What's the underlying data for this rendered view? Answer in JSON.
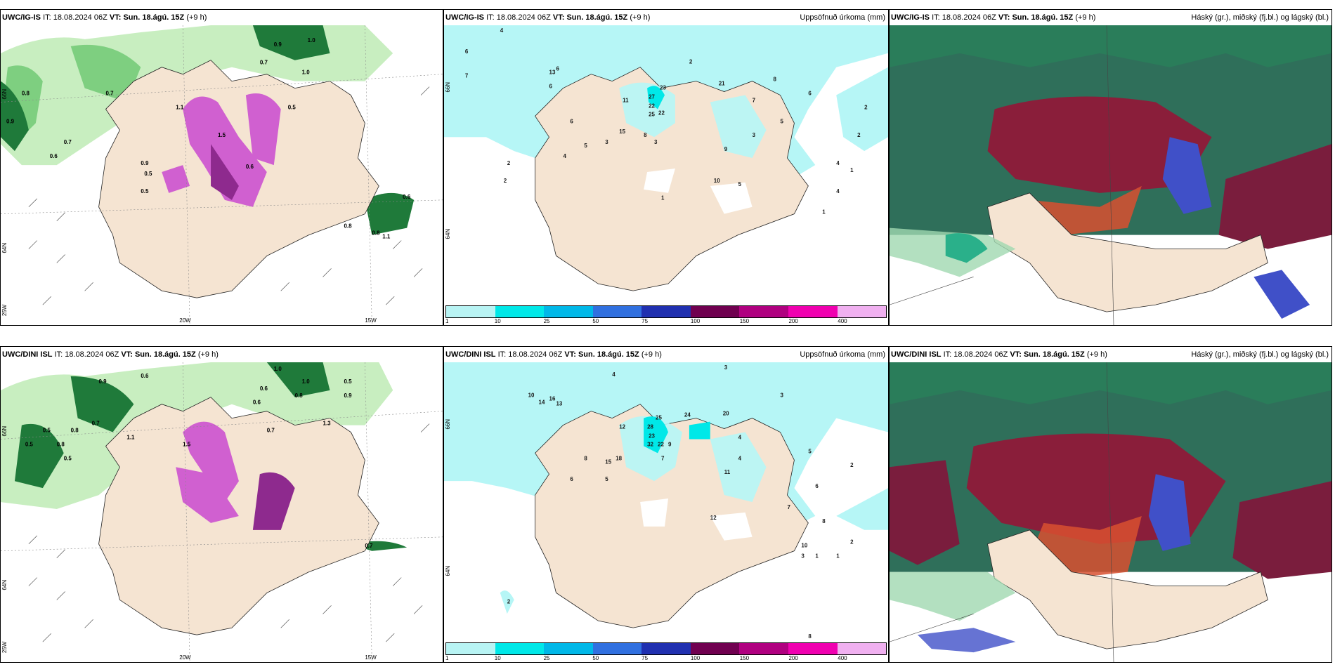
{
  "panels": [
    {
      "model": "UWC/IG-IS",
      "it_label": "IT:",
      "it_value": "18.08.2024 06Z",
      "vt_label": "VT:",
      "vt_value": "Sun. 18.ágú. 15Z",
      "lead": "(+9 h)",
      "title": "",
      "axis": {
        "lat1": "66N",
        "lat2": "64N",
        "lat3": "25W",
        "lon1": "20W",
        "lon2": "15W"
      },
      "labels": [
        "0.9",
        "1.0",
        "0.7",
        "0.8",
        "0.6",
        "0.7",
        "0.5",
        "1.5",
        "0.6",
        "1.1",
        "0.9",
        "0.5",
        "1.0",
        "0.8",
        "0.6",
        "0.7",
        "0.9",
        "0.5",
        "0.8",
        "1.1"
      ]
    },
    {
      "model": "UWC/IG-IS",
      "it_label": "IT:",
      "it_value": "18.08.2024 06Z",
      "vt_label": "VT:",
      "vt_value": "Sun. 18.ágú. 15Z",
      "lead": "(+9 h)",
      "title": "Uppsöfnuð úrkoma (mm)",
      "axis": {
        "lat1": "66N",
        "lat2": "64N"
      },
      "labels": [
        "4",
        "6",
        "2",
        "6",
        "7",
        "3",
        "6",
        "13",
        "27",
        "22",
        "23",
        "25",
        "22",
        "21",
        "11",
        "15",
        "8",
        "6",
        "5",
        "4",
        "3",
        "2",
        "1",
        "10",
        "5",
        "9",
        "7",
        "2",
        "4",
        "1",
        "6",
        "8",
        "2",
        "3",
        "1",
        "4",
        "5",
        "2"
      ]
    },
    {
      "model": "UWC/IG-IS",
      "it_label": "IT:",
      "it_value": "18.08.2024 06Z",
      "vt_label": "VT:",
      "vt_value": "Sun. 18.ágú. 15Z",
      "lead": "(+9 h)",
      "title": "Háský (gr.), miðský (fj.bl.) og lágský (bl.)",
      "axis": {},
      "labels": []
    },
    {
      "model": "UWC/DINI ISL",
      "it_label": "IT:",
      "it_value": "18.08.2024 06Z",
      "vt_label": "VT:",
      "vt_value": "Sun. 18.ágú. 15Z",
      "lead": "(+9 h)",
      "title": "",
      "axis": {
        "lat1": "66N",
        "lat2": "64N",
        "lat3": "25W",
        "lon1": "20W",
        "lon2": "15W"
      },
      "labels": [
        "0.6",
        "1.0",
        "0.5",
        "0.9",
        "0.5",
        "1.5",
        "0.7",
        "0.8",
        "1.3",
        "0.5",
        "0.6",
        "1.1",
        "0.8",
        "0.7",
        "0.9",
        "1.0",
        "0.5",
        "0.6",
        "0.7",
        "0.8"
      ]
    },
    {
      "model": "UWC/DINI ISL",
      "it_label": "IT:",
      "it_value": "18.08.2024 06Z",
      "vt_label": "VT:",
      "vt_value": "Sun. 18.ágú. 15Z",
      "lead": "(+9 h)",
      "title": "Uppsöfnuð úrkoma (mm)",
      "axis": {
        "lat1": "66N",
        "lat2": "64N"
      },
      "labels": [
        "3",
        "4",
        "16",
        "10",
        "14",
        "13",
        "8",
        "12",
        "25",
        "28",
        "23",
        "24",
        "20",
        "32",
        "22",
        "18",
        "15",
        "9",
        "7",
        "6",
        "5",
        "11",
        "12",
        "4",
        "2",
        "1",
        "10",
        "3",
        "8",
        "7",
        "6",
        "5",
        "2",
        "4",
        "1",
        "3",
        "2",
        "8"
      ]
    },
    {
      "model": "UWC/DINI ISL",
      "it_label": "IT:",
      "it_value": "18.08.2024 06Z",
      "vt_label": "VT:",
      "vt_value": "Sun. 18.ágú. 15Z",
      "lead": "(+9 h)",
      "title": "Háský (gr.), miðský (fj.bl.) og lágský (bl.)",
      "axis": {},
      "labels": []
    }
  ],
  "legend": {
    "ticks": [
      "1",
      "10",
      "25",
      "50",
      "75",
      "100",
      "150",
      "200",
      "400"
    ],
    "colors": [
      "#b8f4f4",
      "#00e8e8",
      "#00b8e8",
      "#3070e0",
      "#2030b0",
      "#700050",
      "#b00080",
      "#f000b0",
      "#f0b0f0"
    ]
  },
  "colors": {
    "land": "#f5e4d2",
    "light_cyan": "#b6f6f6",
    "green_light": "#c8eec0",
    "green_mid": "#7ecf80",
    "green_dark": "#1f7a3a",
    "magenta": "#d060d0",
    "purple": "#8e2a8e"
  }
}
